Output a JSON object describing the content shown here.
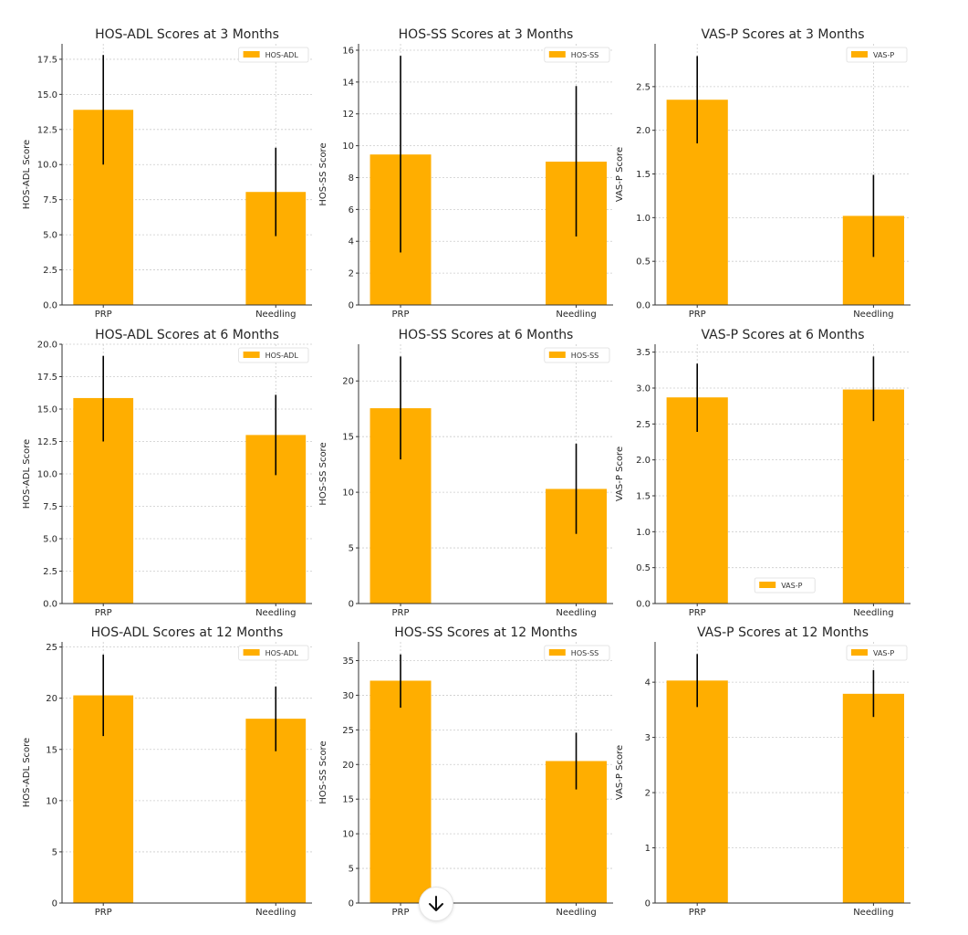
{
  "colors": {
    "bar": "#FFAE00",
    "error": "#000000",
    "grid": "#cccccc",
    "axis": "#333333"
  },
  "scroll_button": {
    "icon": "arrow-down-icon"
  },
  "chart_data": [
    {
      "type": "bar",
      "title": "HOS-ADL Scores at 3 Months",
      "xlabel": "",
      "ylabel": "HOS-ADL Score",
      "categories": [
        "PRP",
        "Needling"
      ],
      "values": [
        13.9,
        8.05
      ],
      "error_low": [
        10.0,
        4.9
      ],
      "error_high": [
        17.8,
        11.2
      ],
      "ylim": [
        0,
        18.6
      ],
      "yticks": [
        0,
        2.5,
        5,
        7.5,
        10,
        12.5,
        15,
        17.5
      ],
      "ytick_labels": [
        "0.0",
        "2.5",
        "5.0",
        "7.5",
        "10.0",
        "12.5",
        "15.0",
        "17.5"
      ],
      "legend": [
        "HOS-ADL"
      ],
      "legend_loc": "upper right",
      "grid": true
    },
    {
      "type": "bar",
      "title": "HOS-SS Scores at 3 Months",
      "xlabel": "",
      "ylabel": "HOS-SS Score",
      "categories": [
        "PRP",
        "Needling"
      ],
      "values": [
        9.45,
        9.0
      ],
      "error_low": [
        3.3,
        4.3
      ],
      "error_high": [
        15.65,
        13.75
      ],
      "ylim": [
        0,
        16.4
      ],
      "yticks": [
        0,
        2,
        4,
        6,
        8,
        10,
        12,
        14,
        16
      ],
      "ytick_labels": [
        "0",
        "2",
        "4",
        "6",
        "8",
        "10",
        "12",
        "14",
        "16"
      ],
      "legend": [
        "HOS-SS"
      ],
      "legend_loc": "upper right",
      "grid": true
    },
    {
      "type": "bar",
      "title": "VAS-P Scores at 3 Months",
      "xlabel": "",
      "ylabel": "VAS-P Score",
      "categories": [
        "PRP",
        "Needling"
      ],
      "values": [
        2.35,
        1.02
      ],
      "error_low": [
        1.85,
        0.55
      ],
      "error_high": [
        2.85,
        1.49
      ],
      "ylim": [
        0,
        2.99
      ],
      "yticks": [
        0,
        0.5,
        1,
        1.5,
        2,
        2.5
      ],
      "ytick_labels": [
        "0.0",
        "0.5",
        "1.0",
        "1.5",
        "2.0",
        "2.5"
      ],
      "legend": [
        "VAS-P"
      ],
      "legend_loc": "upper right",
      "grid": true
    },
    {
      "type": "bar",
      "title": "HOS-ADL Scores at 6 Months",
      "xlabel": "",
      "ylabel": "HOS-ADL Score",
      "categories": [
        "PRP",
        "Needling"
      ],
      "values": [
        15.85,
        13.0
      ],
      "error_low": [
        12.5,
        9.9
      ],
      "error_high": [
        19.1,
        16.1
      ],
      "ylim": [
        0,
        20
      ],
      "yticks": [
        0,
        2.5,
        5,
        7.5,
        10,
        12.5,
        15,
        17.5,
        20
      ],
      "ytick_labels": [
        "0.0",
        "2.5",
        "5.0",
        "7.5",
        "10.0",
        "12.5",
        "15.0",
        "17.5",
        "20.0"
      ],
      "legend": [
        "HOS-ADL"
      ],
      "legend_loc": "upper right",
      "grid": true
    },
    {
      "type": "bar",
      "title": "HOS-SS Scores at 6 Months",
      "xlabel": "",
      "ylabel": "HOS-SS Score",
      "categories": [
        "PRP",
        "Needling"
      ],
      "values": [
        17.55,
        10.3
      ],
      "error_low": [
        12.95,
        6.26
      ],
      "error_high": [
        22.2,
        14.37
      ],
      "ylim": [
        0,
        23.3
      ],
      "yticks": [
        0,
        5,
        10,
        15,
        20
      ],
      "ytick_labels": [
        "0",
        "5",
        "10",
        "15",
        "20"
      ],
      "legend": [
        "HOS-SS"
      ],
      "legend_loc": "upper right",
      "grid": true
    },
    {
      "type": "bar",
      "title": "VAS-P Scores at 6 Months",
      "xlabel": "",
      "ylabel": "VAS-P Score",
      "categories": [
        "PRP",
        "Needling"
      ],
      "values": [
        2.87,
        2.98
      ],
      "error_low": [
        2.39,
        2.54
      ],
      "error_high": [
        3.34,
        3.44
      ],
      "ylim": [
        0,
        3.61
      ],
      "yticks": [
        0,
        0.5,
        1,
        1.5,
        2,
        2.5,
        3,
        3.5
      ],
      "ytick_labels": [
        "0.0",
        "0.5",
        "1.0",
        "1.5",
        "2.0",
        "2.5",
        "3.0",
        "3.5"
      ],
      "legend": [
        "VAS-P"
      ],
      "legend_loc": "lower center",
      "grid": true
    },
    {
      "type": "bar",
      "title": "HOS-ADL Scores at 12 Months",
      "xlabel": "",
      "ylabel": "HOS-ADL Score",
      "categories": [
        "PRP",
        "Needling"
      ],
      "values": [
        20.28,
        18.0
      ],
      "error_low": [
        16.3,
        14.82
      ],
      "error_high": [
        24.26,
        21.14
      ],
      "ylim": [
        0,
        25.5
      ],
      "yticks": [
        0,
        5,
        10,
        15,
        20,
        25
      ],
      "ytick_labels": [
        "0",
        "5",
        "10",
        "15",
        "20",
        "25"
      ],
      "legend": [
        "HOS-ADL"
      ],
      "legend_loc": "upper right",
      "grid": true
    },
    {
      "type": "bar",
      "title": "HOS-SS Scores at 12 Months",
      "xlabel": "",
      "ylabel": "HOS-SS Score",
      "categories": [
        "PRP",
        "Needling"
      ],
      "values": [
        32.1,
        20.5
      ],
      "error_low": [
        28.2,
        16.4
      ],
      "error_high": [
        35.9,
        24.6
      ],
      "ylim": [
        0,
        37.7
      ],
      "yticks": [
        0,
        5,
        10,
        15,
        20,
        25,
        30,
        35
      ],
      "ytick_labels": [
        "0",
        "5",
        "10",
        "15",
        "20",
        "25",
        "30",
        "35"
      ],
      "legend": [
        "HOS-SS"
      ],
      "legend_loc": "upper right",
      "grid": true
    },
    {
      "type": "bar",
      "title": "VAS-P Scores at 12 Months",
      "xlabel": "",
      "ylabel": "VAS-P Score",
      "categories": [
        "PRP",
        "Needling"
      ],
      "values": [
        4.03,
        3.79
      ],
      "error_low": [
        3.55,
        3.37
      ],
      "error_high": [
        4.51,
        4.22
      ],
      "ylim": [
        0,
        4.73
      ],
      "yticks": [
        0,
        1,
        2,
        3,
        4
      ],
      "ytick_labels": [
        "0",
        "1",
        "2",
        "3",
        "4"
      ],
      "legend": [
        "VAS-P"
      ],
      "legend_loc": "upper right",
      "grid": true
    }
  ]
}
